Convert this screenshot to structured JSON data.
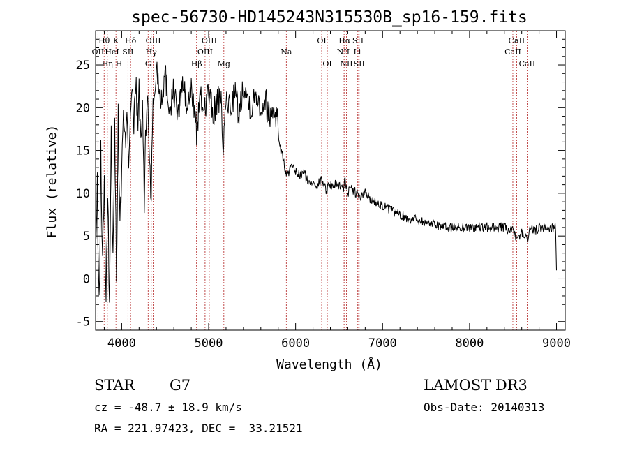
{
  "chart_data": {
    "type": "line",
    "title": "spec-56730-HD145243N315530B_sp16-159.fits",
    "xlabel": "Wavelength (Å)",
    "ylabel": "Flux (relative)",
    "xlim": [
      3700,
      9100
    ],
    "ylim": [
      -6,
      29
    ],
    "xticks": [
      4000,
      5000,
      6000,
      7000,
      8000,
      9000
    ],
    "yticks": [
      -5,
      0,
      5,
      10,
      15,
      20,
      25
    ],
    "grid": false,
    "series": [
      {
        "name": "flux",
        "x": [
          3700,
          3720,
          3740,
          3760,
          3780,
          3800,
          3820,
          3840,
          3860,
          3880,
          3900,
          3920,
          3940,
          3960,
          3980,
          4000,
          4020,
          4040,
          4060,
          4080,
          4100,
          4120,
          4140,
          4160,
          4180,
          4200,
          4220,
          4240,
          4260,
          4280,
          4300,
          4320,
          4340,
          4360,
          4380,
          4400,
          4450,
          4500,
          4550,
          4600,
          4650,
          4700,
          4750,
          4800,
          4850,
          4861,
          4900,
          4950,
          5000,
          5050,
          5100,
          5150,
          5172,
          5183,
          5200,
          5250,
          5300,
          5350,
          5400,
          5450,
          5500,
          5550,
          5600,
          5650,
          5700,
          5750,
          5790,
          5800,
          5830,
          5860,
          5893,
          5950,
          6000,
          6050,
          6100,
          6150,
          6200,
          6250,
          6300,
          6350,
          6400,
          6450,
          6500,
          6550,
          6563,
          6600,
          6650,
          6700,
          6750,
          6800,
          6850,
          6900,
          6950,
          7000,
          7100,
          7200,
          7300,
          7400,
          7500,
          7600,
          7700,
          7800,
          7900,
          8000,
          8100,
          8200,
          8300,
          8400,
          8500,
          8542,
          8600,
          8662,
          8700,
          8750,
          8800,
          8850,
          8900,
          8950,
          8990,
          9000
        ],
        "y": [
          3,
          10,
          -4,
          14,
          2,
          12,
          -3,
          9,
          -2,
          16,
          4,
          17,
          1,
          18,
          7,
          12,
          19,
          15,
          21,
          14,
          20,
          22,
          17,
          23,
          19,
          21,
          16,
          20,
          9,
          18,
          22,
          14,
          10,
          20,
          22,
          25,
          21,
          24,
          20,
          22,
          19,
          23,
          20,
          22,
          19,
          17,
          21,
          20,
          22,
          19,
          21,
          20,
          14,
          18,
          21,
          20,
          22,
          19,
          23,
          21,
          20,
          22,
          20,
          21,
          19,
          20,
          19,
          17,
          15,
          14,
          12,
          13,
          12.5,
          12,
          12.5,
          11,
          11.5,
          11,
          11.5,
          10.5,
          11,
          11,
          11,
          10.5,
          12,
          10,
          10.5,
          10,
          9.5,
          10,
          9.5,
          9,
          9,
          8.5,
          8,
          7.5,
          7,
          7,
          6.5,
          6.5,
          6,
          6,
          6,
          6,
          6,
          6,
          6,
          6,
          5.5,
          4.5,
          5.5,
          4.5,
          6,
          5.5,
          6,
          6,
          6,
          6,
          6,
          1
        ]
      }
    ],
    "lines": [
      {
        "label": "Hθ",
        "x": 3798,
        "row": 1
      },
      {
        "label": "OII",
        "x": 3727,
        "row": 2
      },
      {
        "label": "Hη",
        "x": 3835,
        "row": 3
      },
      {
        "label": "K",
        "x": 3934,
        "row": 1
      },
      {
        "label": "HeI",
        "x": 3889,
        "row": 2
      },
      {
        "label": "H",
        "x": 3969,
        "row": 3
      },
      {
        "label": "SII",
        "x": 4072,
        "row": 2
      },
      {
        "label": "Hδ",
        "x": 4102,
        "row": 1
      },
      {
        "label": "OIII",
        "x": 4363,
        "row": 1
      },
      {
        "label": "Hγ",
        "x": 4340,
        "row": 2
      },
      {
        "label": "G",
        "x": 4304,
        "row": 3
      },
      {
        "label": "OIII",
        "x": 5007,
        "row": 1
      },
      {
        "label": "OIII",
        "x": 4959,
        "row": 2
      },
      {
        "label": "Hβ",
        "x": 4861,
        "row": 3
      },
      {
        "label": "Mg",
        "x": 5175,
        "row": 3
      },
      {
        "label": "Na",
        "x": 5893,
        "row": 2
      },
      {
        "label": "OI",
        "x": 6300,
        "row": 1
      },
      {
        "label": "OI",
        "x": 6364,
        "row": 3
      },
      {
        "label": "Hα",
        "x": 6563,
        "row": 1
      },
      {
        "label": "NII",
        "x": 6548,
        "row": 2
      },
      {
        "label": "NII",
        "x": 6584,
        "row": 3
      },
      {
        "label": "SII",
        "x": 6717,
        "row": 1
      },
      {
        "label": "Li",
        "x": 6708,
        "row": 2
      },
      {
        "label": "SII",
        "x": 6731,
        "row": 3
      },
      {
        "label": "CaII",
        "x": 8542,
        "row": 1
      },
      {
        "label": "CaII",
        "x": 8498,
        "row": 2
      },
      {
        "label": "CaII",
        "x": 8662,
        "row": 3
      }
    ]
  },
  "info": {
    "object_class": "STAR",
    "subclass": "G7",
    "survey": "LAMOST DR3",
    "cz": "cz = -48.7 ± 18.9 km/s",
    "obs_date": "Obs-Date: 20140313",
    "coords": "RA = 221.97423, DEC =  33.21521"
  },
  "colors": {
    "emission_line": "#b22222",
    "axis": "#000000",
    "spectrum": "#000000"
  }
}
